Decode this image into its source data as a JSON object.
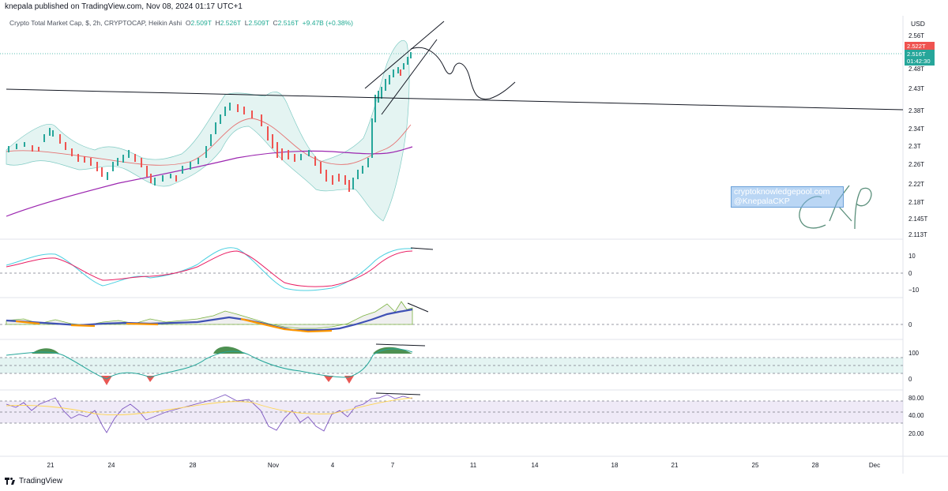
{
  "header": {
    "published": "knepala published on TradingView.com, Nov 08, 2024 01:17 UTC+1",
    "symbol": "Crypto Total Market Cap, $, 2h, CRYPTOCAP, Heikin Ashi",
    "o_label": "O",
    "o_value": "2.509T",
    "h_label": "H",
    "h_value": "2.526T",
    "l_label": "L",
    "l_value": "2.509T",
    "c_label": "C",
    "c_value": "2.516T",
    "change": "+9.47B (+0.38%)"
  },
  "price_axis": {
    "currency": "USD",
    "labels": [
      "2.56T",
      "2.48T",
      "2.43T",
      "2.38T",
      "2.34T",
      "2.3T",
      "2.26T",
      "2.22T",
      "2.18T",
      "2.145T",
      "2.113T"
    ],
    "badge_high": "2.522T",
    "badge_last_price": "2.516T",
    "badge_last_time": "01:42:30"
  },
  "indicator_axes": {
    "macd": [
      "10",
      "0",
      "−10"
    ],
    "ao": [
      "0"
    ],
    "mfi": [
      "100",
      "0"
    ],
    "rsi": [
      "80.00",
      "40.00",
      "20.00"
    ]
  },
  "time_axis": {
    "labels": [
      "21",
      "24",
      "28",
      "Nov",
      "4",
      "7",
      "11",
      "14",
      "18",
      "21",
      "25",
      "28",
      "Dec"
    ]
  },
  "watermark": {
    "line1": "cryptoknowledgepool.com",
    "line2": "@KnepalaCKP"
  },
  "footer": {
    "brand": "TradingView"
  },
  "colors": {
    "up": "#26a69a",
    "down": "#ef5350",
    "ma_purple": "#9c27b0",
    "ma_red": "#e57373",
    "band": "#b2dfdb"
  }
}
